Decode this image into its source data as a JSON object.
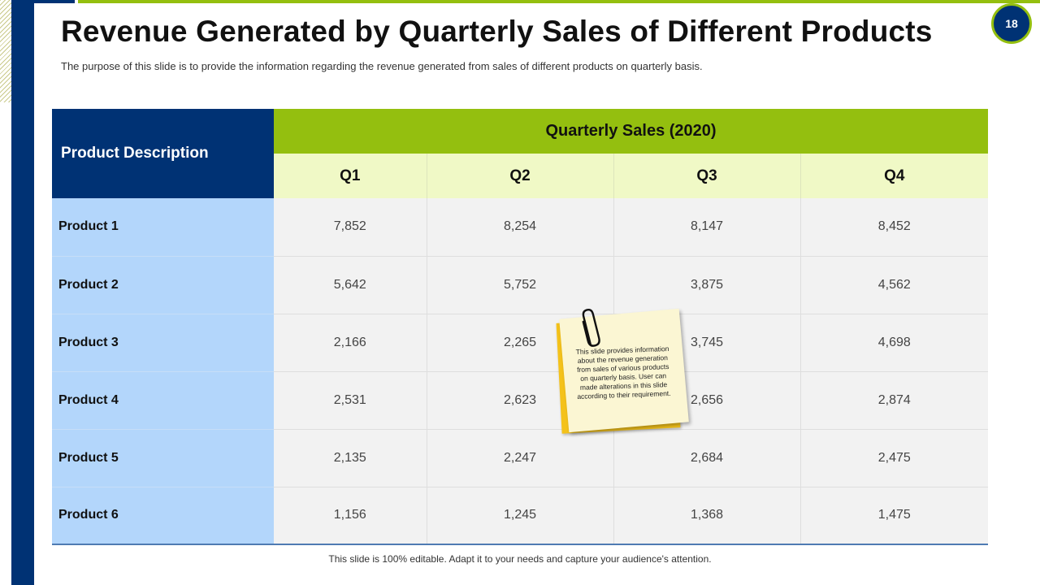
{
  "slide": {
    "page_number": "18",
    "title": "Revenue Generated by Quarterly Sales of Different Products",
    "subtitle": "The purpose of this slide is to provide the information regarding the revenue generated from sales of different products on quarterly basis.",
    "footer": "This slide is 100% editable. Adapt it to your needs and capture your audience's attention."
  },
  "table": {
    "product_header": "Product Description",
    "group_header": "Quarterly Sales (2020)",
    "quarters": [
      "Q1",
      "Q2",
      "Q3",
      "Q4"
    ],
    "rows": [
      {
        "product": "Product 1",
        "values": [
          "7,852",
          "8,254",
          "8,147",
          "8,452"
        ]
      },
      {
        "product": "Product 2",
        "values": [
          "5,642",
          "5,752",
          "3,875",
          "4,562"
        ]
      },
      {
        "product": "Product 3",
        "values": [
          "2,166",
          "2,265",
          "3,745",
          "4,698"
        ]
      },
      {
        "product": "Product 4",
        "values": [
          "2,531",
          "2,623",
          "2,656",
          "2,874"
        ]
      },
      {
        "product": "Product 5",
        "values": [
          "2,135",
          "2,247",
          "2,684",
          "2,475"
        ]
      },
      {
        "product": "Product 6",
        "values": [
          "1,156",
          "1,245",
          "1,368",
          "1,475"
        ]
      }
    ]
  },
  "sticky_note": {
    "text": "This slide provides information about the revenue generation from sales of various products on quarterly basis. User can made alterations in this slide according to their requirement.",
    "icon": "paperclip-icon"
  },
  "colors": {
    "navy": "#003274",
    "green": "#94bf0f",
    "light_green": "#f0f9c6",
    "light_blue": "#b3d6fb",
    "cell_gray": "#f2f2f2",
    "note_yellow": "#f4c21a"
  }
}
